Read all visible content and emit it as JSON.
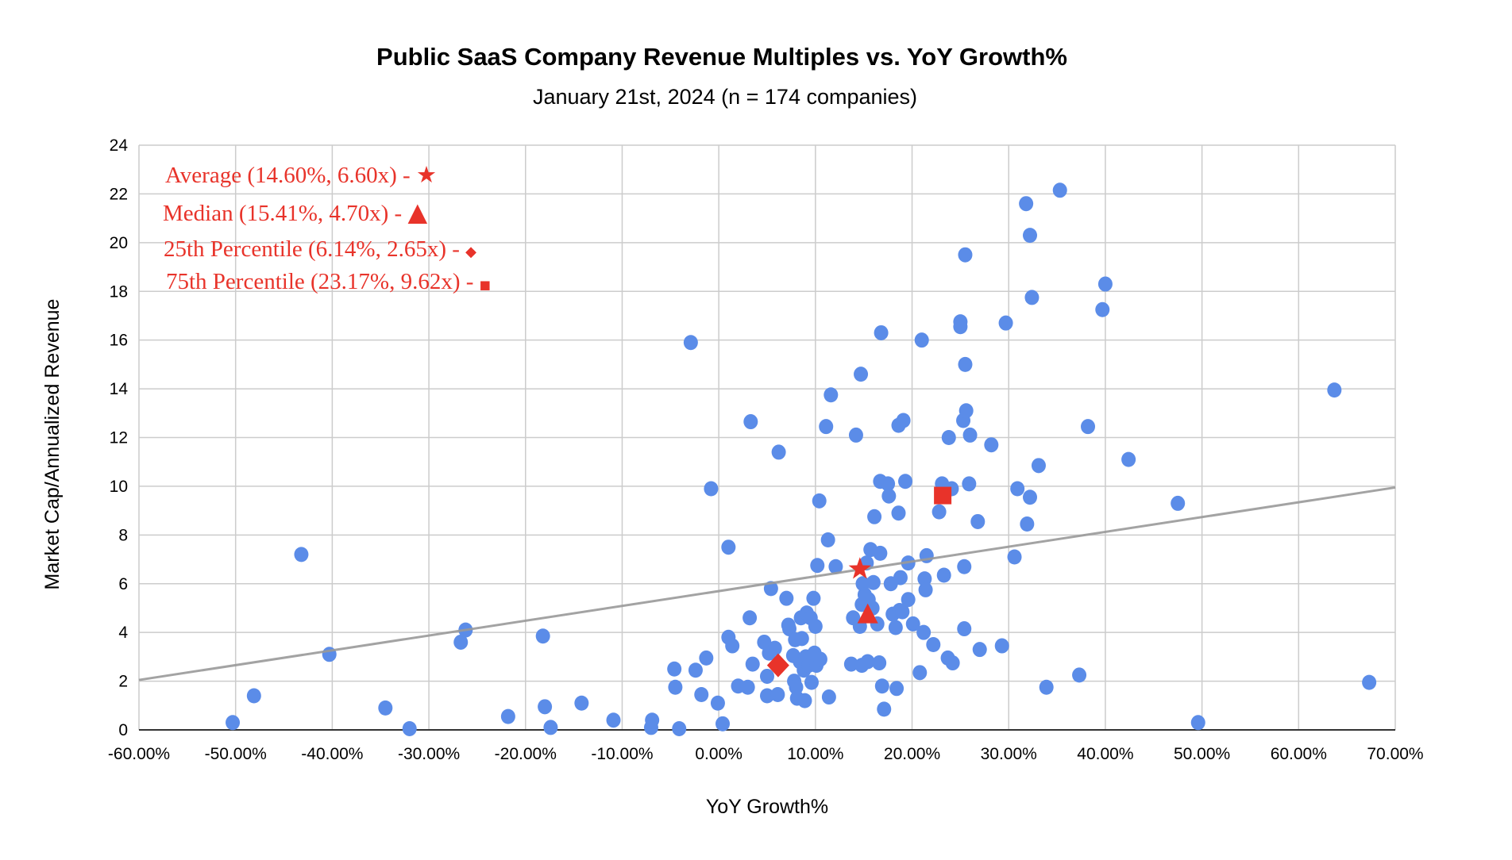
{
  "chart_data": {
    "type": "scatter",
    "title": "Public SaaS Company Revenue Multiples vs. YoY Growth%",
    "subtitle": "January 21st, 2024 (n = 174 companies)",
    "xlabel": "YoY Growth%",
    "ylabel": "Market Cap/Annualized Revenue",
    "xlim": [
      -60,
      70
    ],
    "ylim": [
      0,
      24
    ],
    "grid": true,
    "x_ticks": [
      "-60.00%",
      "-50.00%",
      "-40.00%",
      "-30.00%",
      "-20.00%",
      "-10.00%",
      "0.00%",
      "10.00%",
      "20.00%",
      "30.00%",
      "40.00%",
      "50.00%",
      "60.00%",
      "70.00%"
    ],
    "x_tick_values": [
      -60,
      -50,
      -40,
      -30,
      -20,
      -10,
      0,
      10,
      20,
      30,
      40,
      50,
      60,
      70
    ],
    "y_ticks": [
      "0",
      "2",
      "4",
      "6",
      "8",
      "10",
      "12",
      "14",
      "16",
      "18",
      "20",
      "22",
      "24"
    ],
    "y_tick_values": [
      0,
      2,
      4,
      6,
      8,
      10,
      12,
      14,
      16,
      18,
      20,
      22,
      24
    ],
    "colors": {
      "points": "#5b8ce8",
      "highlight": "#e8332a",
      "trend": "#999999",
      "grid": "#cccccc"
    },
    "series": [
      {
        "name": "Companies",
        "points": [
          [
            -50.3,
            0.3
          ],
          [
            -48.1,
            1.4
          ],
          [
            -43.2,
            7.2
          ],
          [
            -40.3,
            3.1
          ],
          [
            -34.5,
            0.9
          ],
          [
            -32.0,
            0.05
          ],
          [
            -26.7,
            3.6
          ],
          [
            -26.2,
            4.1
          ],
          [
            -21.8,
            0.55
          ],
          [
            -18.2,
            3.85
          ],
          [
            -18.0,
            0.95
          ],
          [
            -17.4,
            0.1
          ],
          [
            -14.2,
            1.1
          ],
          [
            -10.9,
            0.4
          ],
          [
            -6.9,
            0.4
          ],
          [
            -7.0,
            0.1
          ],
          [
            -4.6,
            2.5
          ],
          [
            -4.5,
            1.75
          ],
          [
            -4.1,
            0.05
          ],
          [
            -2.9,
            15.9
          ],
          [
            -2.4,
            2.45
          ],
          [
            -1.8,
            1.45
          ],
          [
            -1.3,
            2.95
          ],
          [
            -0.8,
            9.9
          ],
          [
            -0.1,
            1.1
          ],
          [
            0.4,
            0.25
          ],
          [
            1.0,
            7.5
          ],
          [
            1.0,
            3.8
          ],
          [
            1.4,
            3.45
          ],
          [
            2.0,
            1.8
          ],
          [
            3.0,
            1.75
          ],
          [
            3.2,
            4.6
          ],
          [
            3.3,
            12.65
          ],
          [
            3.5,
            2.7
          ],
          [
            4.7,
            3.6
          ],
          [
            5.0,
            2.2
          ],
          [
            5.0,
            1.4
          ],
          [
            5.2,
            3.15
          ],
          [
            5.4,
            5.8
          ],
          [
            5.8,
            3.35
          ],
          [
            6.1,
            1.45
          ],
          [
            6.2,
            11.4
          ],
          [
            7.0,
            5.4
          ],
          [
            7.2,
            4.3
          ],
          [
            7.3,
            4.15
          ],
          [
            7.7,
            3.05
          ],
          [
            7.8,
            2.0
          ],
          [
            7.9,
            3.7
          ],
          [
            8.0,
            1.75
          ],
          [
            8.1,
            1.3
          ],
          [
            8.4,
            2.8
          ],
          [
            8.5,
            4.6
          ],
          [
            8.6,
            3.75
          ],
          [
            8.7,
            2.7
          ],
          [
            8.8,
            2.45
          ],
          [
            8.9,
            1.2
          ],
          [
            9.0,
            3.0
          ],
          [
            9.1,
            4.8
          ],
          [
            9.3,
            2.65
          ],
          [
            9.5,
            4.6
          ],
          [
            9.6,
            1.95
          ],
          [
            9.8,
            5.4
          ],
          [
            9.9,
            3.15
          ],
          [
            10.0,
            4.25
          ],
          [
            10.1,
            2.65
          ],
          [
            10.2,
            6.75
          ],
          [
            10.4,
            9.4
          ],
          [
            10.5,
            2.9
          ],
          [
            11.1,
            12.45
          ],
          [
            11.3,
            7.8
          ],
          [
            11.4,
            1.35
          ],
          [
            11.6,
            13.75
          ],
          [
            12.1,
            6.7
          ],
          [
            13.7,
            2.7
          ],
          [
            13.9,
            4.6
          ],
          [
            14.2,
            12.1
          ],
          [
            14.6,
            4.25
          ],
          [
            14.7,
            14.6
          ],
          [
            14.8,
            5.15
          ],
          [
            14.8,
            2.65
          ],
          [
            14.9,
            6.0
          ],
          [
            15.1,
            5.55
          ],
          [
            15.3,
            6.85
          ],
          [
            15.4,
            2.8
          ],
          [
            15.5,
            5.35
          ],
          [
            15.7,
            7.4
          ],
          [
            15.9,
            5.0
          ],
          [
            16.0,
            6.05
          ],
          [
            16.1,
            8.75
          ],
          [
            16.4,
            4.35
          ],
          [
            16.6,
            2.75
          ],
          [
            16.7,
            10.2
          ],
          [
            16.7,
            7.25
          ],
          [
            16.8,
            16.3
          ],
          [
            16.9,
            1.8
          ],
          [
            17.1,
            0.85
          ],
          [
            17.5,
            10.1
          ],
          [
            17.6,
            9.6
          ],
          [
            17.8,
            6.0
          ],
          [
            18.0,
            4.75
          ],
          [
            18.3,
            4.2
          ],
          [
            18.4,
            1.7
          ],
          [
            18.6,
            12.5
          ],
          [
            18.6,
            8.9
          ],
          [
            18.7,
            4.9
          ],
          [
            18.8,
            6.25
          ],
          [
            19.0,
            4.85
          ],
          [
            19.1,
            12.7
          ],
          [
            19.3,
            10.2
          ],
          [
            19.6,
            6.85
          ],
          [
            19.6,
            5.35
          ],
          [
            20.1,
            4.35
          ],
          [
            20.8,
            2.35
          ],
          [
            21.0,
            16.0
          ],
          [
            21.2,
            4.0
          ],
          [
            21.3,
            6.2
          ],
          [
            21.4,
            5.75
          ],
          [
            21.5,
            7.15
          ],
          [
            22.2,
            3.5
          ],
          [
            22.8,
            8.95
          ],
          [
            23.1,
            10.1
          ],
          [
            23.3,
            6.35
          ],
          [
            23.7,
            2.95
          ],
          [
            23.8,
            12.0
          ],
          [
            24.1,
            9.9
          ],
          [
            24.2,
            2.75
          ],
          [
            25.0,
            16.75
          ],
          [
            25.0,
            16.55
          ],
          [
            25.3,
            12.7
          ],
          [
            25.4,
            6.7
          ],
          [
            25.4,
            4.15
          ],
          [
            25.5,
            19.5
          ],
          [
            25.5,
            15.0
          ],
          [
            25.6,
            13.1
          ],
          [
            25.9,
            10.1
          ],
          [
            26.0,
            12.1
          ],
          [
            26.8,
            8.55
          ],
          [
            27.0,
            3.3
          ],
          [
            28.2,
            11.7
          ],
          [
            29.3,
            3.45
          ],
          [
            29.7,
            16.7
          ],
          [
            30.6,
            7.1
          ],
          [
            30.9,
            9.9
          ],
          [
            31.8,
            21.6
          ],
          [
            31.9,
            8.45
          ],
          [
            32.2,
            20.3
          ],
          [
            32.2,
            9.55
          ],
          [
            32.4,
            17.75
          ],
          [
            33.1,
            10.85
          ],
          [
            33.9,
            1.75
          ],
          [
            35.3,
            22.15
          ],
          [
            37.3,
            2.25
          ],
          [
            38.2,
            12.45
          ],
          [
            39.7,
            17.25
          ],
          [
            40.0,
            18.3
          ],
          [
            42.4,
            11.1
          ],
          [
            47.5,
            9.3
          ],
          [
            49.6,
            0.3
          ],
          [
            63.7,
            13.95
          ],
          [
            67.3,
            1.95
          ]
        ]
      }
    ],
    "trendline": {
      "x": [
        -60,
        70
      ],
      "y": [
        2.05,
        9.95
      ]
    },
    "highlights": [
      {
        "name": "Average",
        "marker": "star",
        "x": 14.6,
        "y": 6.6,
        "label": "Average (14.60%, 6.60x) - ",
        "symbol": "★"
      },
      {
        "name": "Median",
        "marker": "triangle",
        "x": 15.41,
        "y": 4.7,
        "label": "Median (15.41%, 4.70x) - ",
        "symbol": "▲"
      },
      {
        "name": "25th Percentile",
        "marker": "diamond",
        "x": 6.14,
        "y": 2.65,
        "label": "25th Percentile (6.14%, 2.65x) - ",
        "symbol": "◆"
      },
      {
        "name": "75th Percentile",
        "marker": "square",
        "x": 23.17,
        "y": 9.62,
        "label": "75th Percentile (23.17%, 9.62x) - ",
        "symbol": "■"
      }
    ]
  }
}
